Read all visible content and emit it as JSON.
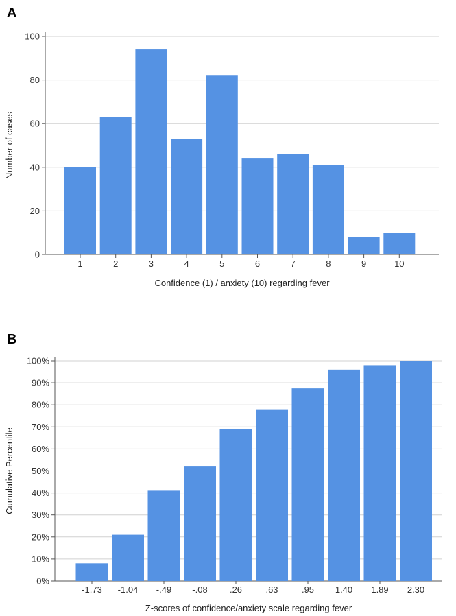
{
  "panels": [
    {
      "label": "A"
    },
    {
      "label": "B"
    }
  ],
  "chart_data": [
    {
      "type": "bar",
      "categories": [
        "1",
        "2",
        "3",
        "4",
        "5",
        "6",
        "7",
        "8",
        "9",
        "10"
      ],
      "values": [
        40,
        63,
        94,
        53,
        82,
        44,
        46,
        41,
        8,
        10
      ],
      "xlabel": "Confidence (1) /  anxiety (10) regarding fever",
      "ylabel": "Number of cases",
      "ylim": [
        0,
        100
      ],
      "yticks": [
        "0",
        "20",
        "40",
        "60",
        "80",
        "100"
      ],
      "grid": true,
      "bar_color": "#5592e3"
    },
    {
      "type": "bar",
      "categories": [
        "-1.73",
        "-1.04",
        "-.49",
        "-.08",
        ".26",
        ".63",
        ".95",
        "1.40",
        "1.89",
        "2.30"
      ],
      "values": [
        8,
        21,
        41,
        52,
        69,
        78,
        87.5,
        96,
        98,
        100
      ],
      "xlabel": "Z-scores of confidence/anxiety scale regarding fever",
      "ylabel": "Cumulative Percentile",
      "ylim": [
        0,
        100
      ],
      "yticks": [
        "0%",
        "10%",
        "20%",
        "30%",
        "40%",
        "50%",
        "60%",
        "70%",
        "80%",
        "90%",
        "100%"
      ],
      "grid": true,
      "bar_color": "#5592e3"
    }
  ]
}
